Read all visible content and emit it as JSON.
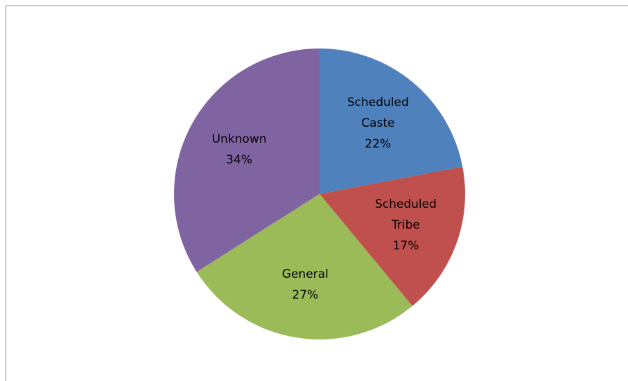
{
  "chart_data": {
    "type": "pie",
    "categories": [
      "Scheduled Caste",
      "Scheduled Tribe",
      "General",
      "Unknown"
    ],
    "values": [
      22,
      17,
      27,
      34
    ],
    "value_labels": [
      "22%",
      "17%",
      "27%",
      "34%"
    ],
    "colors": [
      "#4f81bd",
      "#c0504d",
      "#9bbb59",
      "#8064a2"
    ]
  }
}
